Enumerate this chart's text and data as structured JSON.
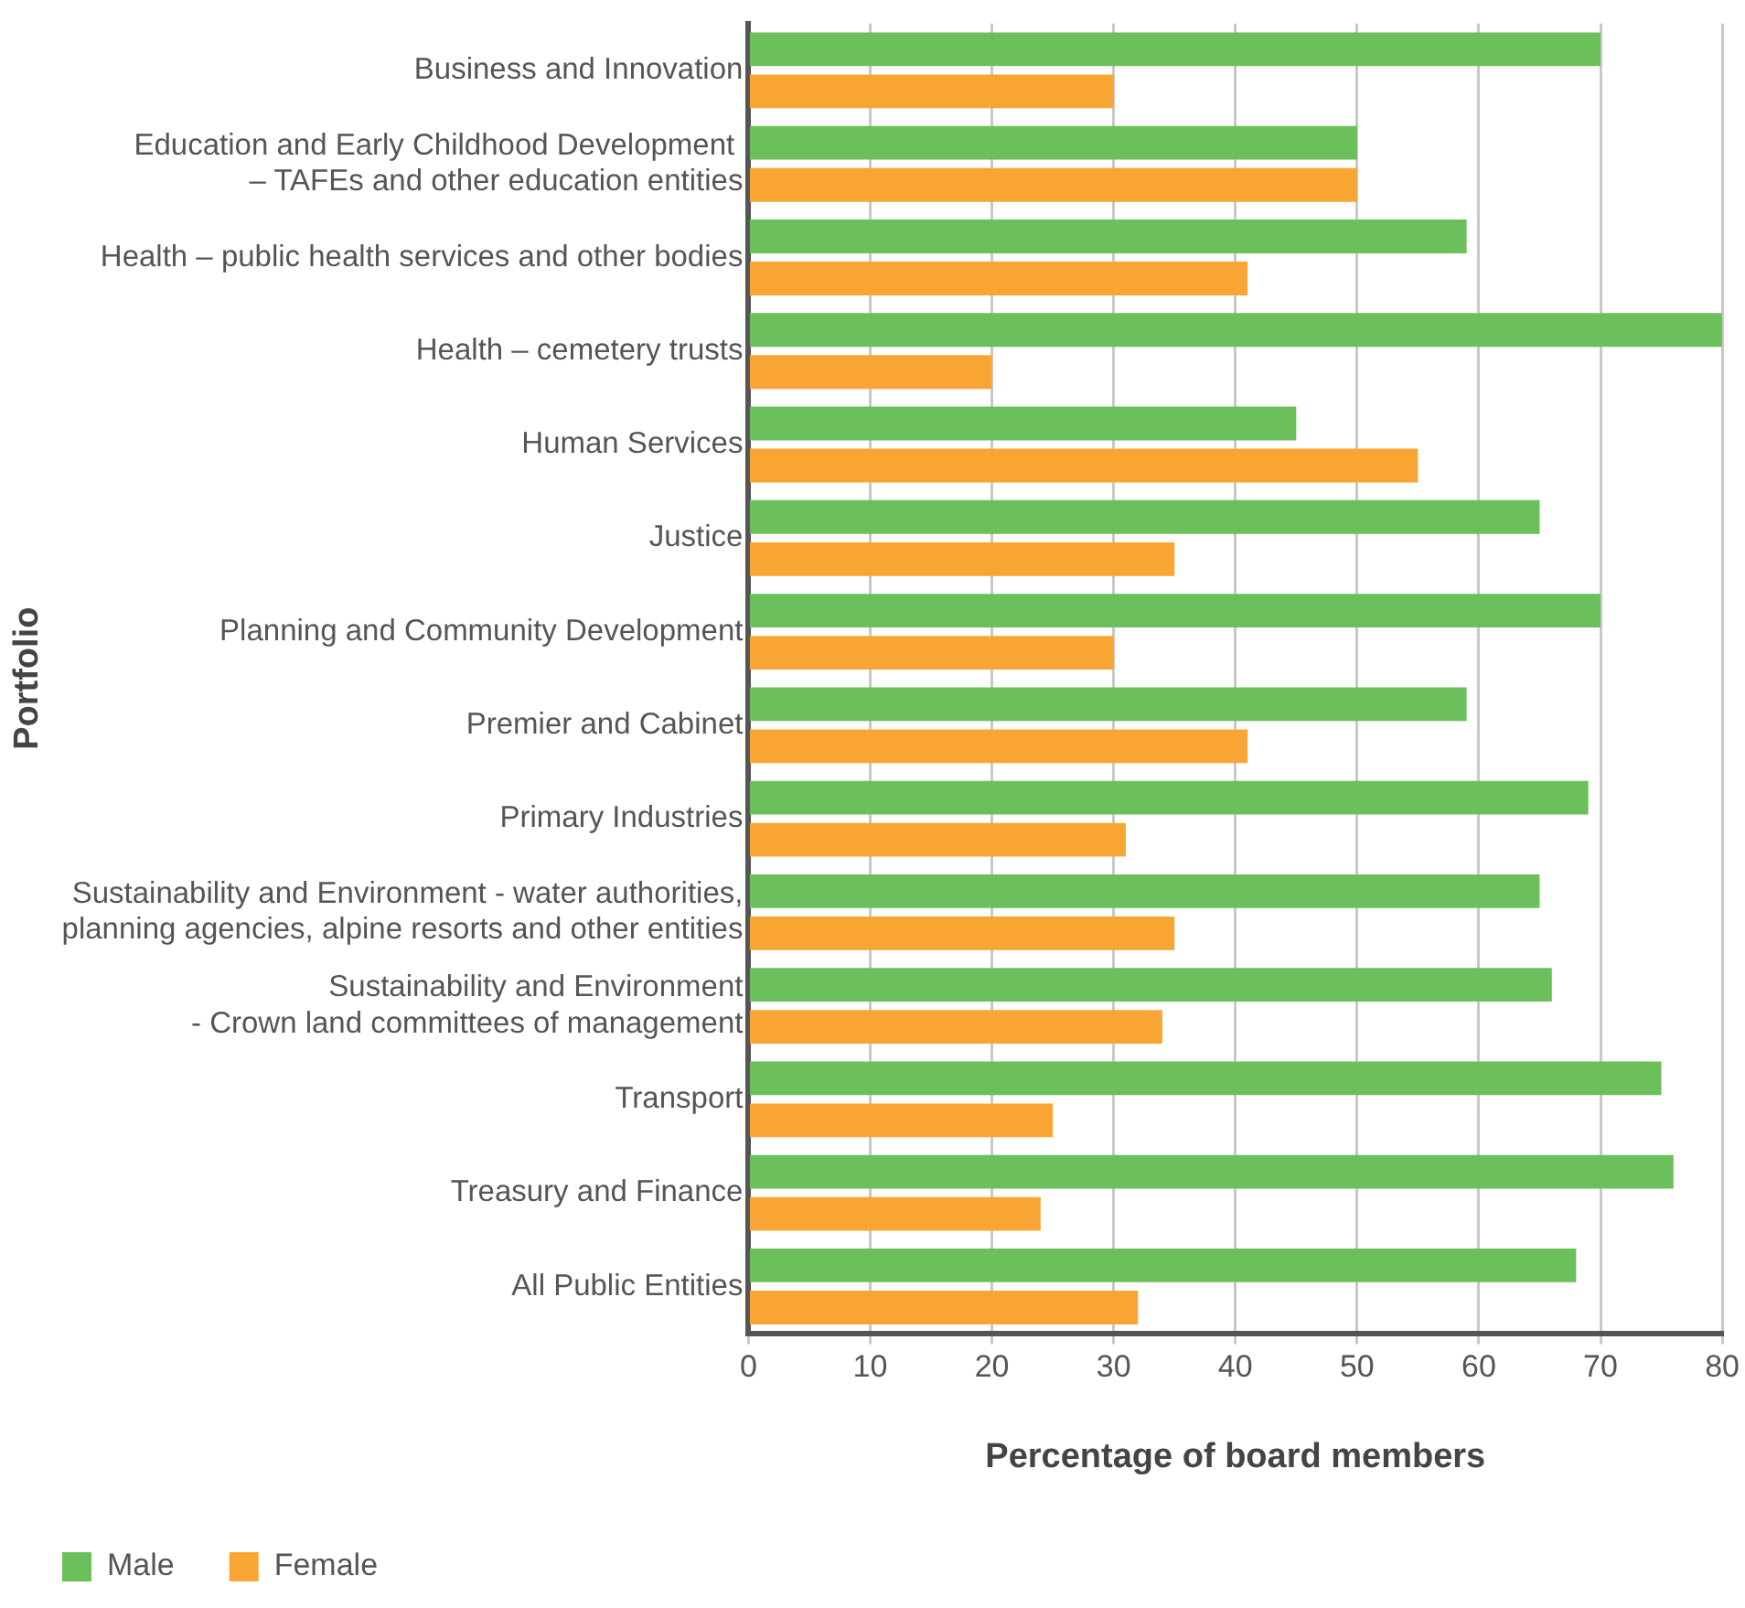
{
  "chart_data": {
    "type": "bar",
    "orientation": "horizontal",
    "xlabel": "Percentage of board members",
    "ylabel": "Portfolio",
    "categories": [
      "Business and Innovation",
      "Education and Early Childhood Development \n– TAFEs and other education entities",
      "Health – public health services and other bodies",
      "Health – cemetery trusts",
      "Human Services",
      "Justice",
      "Planning and Community Development",
      "Premier and Cabinet",
      "Primary Industries",
      "Sustainability and Environment - water authorities,\nplanning agencies, alpine resorts and other entities",
      "Sustainability and Environment\n- Crown land committees of management",
      "Transport",
      "Treasury and Finance",
      "All Public Entities"
    ],
    "series": [
      {
        "name": "Male",
        "color": "#6cc05c",
        "values": [
          70,
          50,
          59,
          80,
          45,
          65,
          70,
          59,
          69,
          65,
          66,
          75,
          76,
          68
        ]
      },
      {
        "name": "Female",
        "color": "#f9a533",
        "values": [
          30,
          50,
          41,
          20,
          55,
          35,
          30,
          41,
          31,
          35,
          34,
          25,
          24,
          32
        ]
      }
    ],
    "xlim": [
      0,
      80
    ],
    "xticks": [
      0,
      10,
      20,
      30,
      40,
      50,
      60,
      70,
      80
    ],
    "grid": "x",
    "legend": "bottom"
  }
}
